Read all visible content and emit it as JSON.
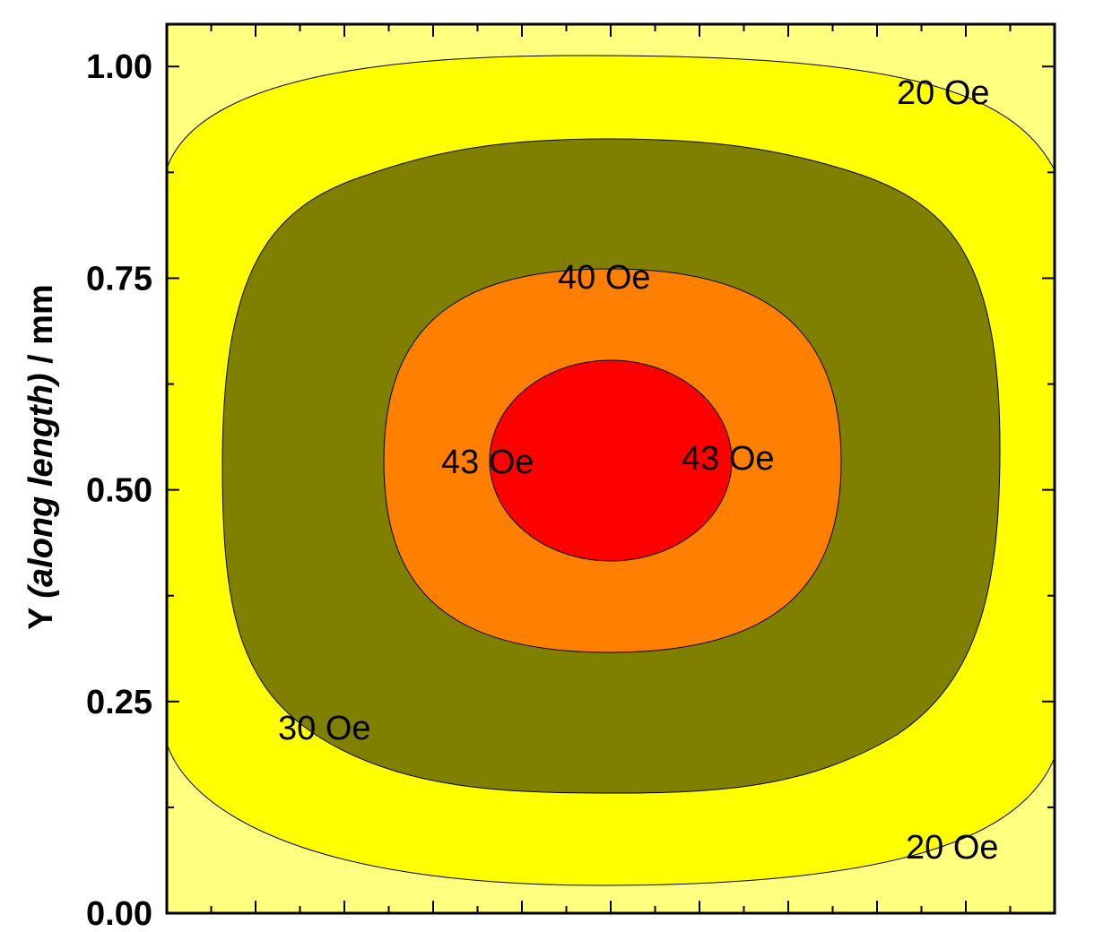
{
  "chart_data": {
    "type": "contour",
    "xlabel": "",
    "ylabel_prefix": "Y ",
    "ylabel_italic": "(along length)",
    "ylabel_suffix": " / mm",
    "ylim": [
      0.0,
      1.05
    ],
    "y_ticks": [
      "0.00",
      "0.25",
      "0.50",
      "0.75",
      "1.00"
    ],
    "y_tick_values": [
      0.0,
      0.25,
      0.5,
      0.75,
      1.0
    ],
    "x_tick_labels_shown": false,
    "levels": [
      {
        "name": "20 Oe",
        "color": "#ffff00"
      },
      {
        "name": "30 Oe",
        "color": "#808000"
      },
      {
        "name": "40 Oe",
        "color": "#ff8000"
      },
      {
        "name": "43 Oe",
        "color": "#ff0000"
      }
    ],
    "background_color": "#ffff80",
    "contour_labels": [
      {
        "text": "20 Oe",
        "y": 0.98
      },
      {
        "text": "40 Oe",
        "y": 0.76
      },
      {
        "text": "43 Oe",
        "y": 0.54
      },
      {
        "text": "43 Oe",
        "y": 0.54
      },
      {
        "text": "30 Oe",
        "y": 0.22
      },
      {
        "text": "20 Oe",
        "y": 0.09
      }
    ]
  }
}
